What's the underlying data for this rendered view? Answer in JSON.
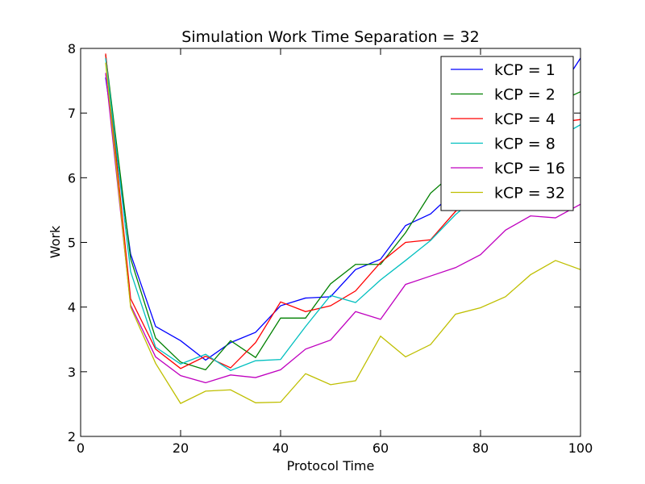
{
  "chart_data": {
    "type": "line",
    "title": "Simulation Work Time Separation = 32",
    "xlabel": "Protocol Time",
    "ylabel": "Work",
    "xlim": [
      0,
      100
    ],
    "ylim": [
      2,
      8
    ],
    "xticks": [
      "0",
      "20",
      "40",
      "60",
      "80",
      "100"
    ],
    "yticks": [
      "2",
      "3",
      "4",
      "5",
      "6",
      "7",
      "8"
    ],
    "grid": false,
    "legend_position": "top-right",
    "x": [
      5,
      10,
      15,
      20,
      25,
      30,
      35,
      40,
      45,
      50,
      55,
      60,
      65,
      70,
      75,
      80,
      85,
      90,
      95,
      100
    ],
    "series": [
      {
        "name": "kCP = 1",
        "color": "#0000ff",
        "values": [
          7.55,
          4.82,
          3.7,
          3.48,
          3.18,
          3.45,
          3.61,
          4.02,
          4.14,
          4.16,
          4.58,
          4.74,
          5.26,
          5.44,
          5.8,
          6.1,
          6.55,
          7.05,
          7.25,
          7.85
        ]
      },
      {
        "name": "kCP = 2",
        "color": "#008000",
        "values": [
          7.9,
          4.75,
          3.52,
          3.15,
          3.03,
          3.48,
          3.22,
          3.83,
          3.83,
          4.36,
          4.66,
          4.66,
          5.15,
          5.76,
          6.1,
          6.4,
          6.7,
          6.95,
          7.15,
          7.33
        ]
      },
      {
        "name": "kCP = 4",
        "color": "#ff0000",
        "values": [
          7.92,
          4.13,
          3.35,
          3.05,
          3.24,
          3.06,
          3.45,
          4.08,
          3.93,
          4.02,
          4.25,
          4.69,
          5.0,
          5.04,
          5.48,
          5.8,
          6.1,
          6.5,
          6.85,
          6.9
        ]
      },
      {
        "name": "kCP = 8",
        "color": "#00bfbf",
        "values": [
          7.85,
          4.55,
          3.38,
          3.12,
          3.27,
          3.02,
          3.17,
          3.19,
          3.7,
          4.18,
          4.07,
          4.42,
          4.72,
          5.03,
          5.43,
          5.75,
          6.05,
          6.35,
          6.6,
          6.82
        ]
      },
      {
        "name": "kCP = 16",
        "color": "#bf00bf",
        "values": [
          7.62,
          4.03,
          3.23,
          2.94,
          2.83,
          2.95,
          2.91,
          3.03,
          3.35,
          3.49,
          3.93,
          3.81,
          4.35,
          4.48,
          4.61,
          4.81,
          5.19,
          5.41,
          5.38,
          5.59
        ]
      },
      {
        "name": "kCP = 32",
        "color": "#bfbf00",
        "values": [
          7.78,
          4.0,
          3.13,
          2.51,
          2.7,
          2.72,
          2.52,
          2.53,
          2.97,
          2.8,
          2.86,
          3.55,
          3.23,
          3.42,
          3.89,
          3.99,
          4.16,
          4.5,
          4.72,
          4.58
        ]
      }
    ]
  }
}
